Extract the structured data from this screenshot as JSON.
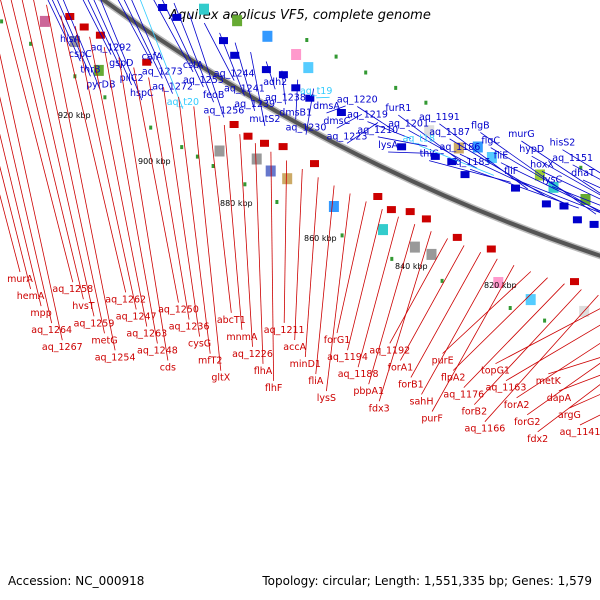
{
  "title": "Aquifex aeolicus VF5, complete genome",
  "footer": {
    "accession": "Accession: NC_000918",
    "summary": "Topology: circular; Length: 1,551,335 bp; Genes: 1,579"
  },
  "colors": {
    "forward": "#0000cc",
    "reverse": "#cc0000",
    "rna": "#33ccff",
    "backbone": "#555555",
    "tick_label": "#000000"
  },
  "ticks": [
    {
      "label": "920 kbp"
    },
    {
      "label": "900 kbp"
    },
    {
      "label": "880 kbp"
    },
    {
      "label": "860 kbp"
    },
    {
      "label": "840 kbp"
    },
    {
      "label": "820 kbp"
    }
  ],
  "forward_genes": [
    "hisA",
    "cspC",
    "thrB",
    "pyrDB",
    "aq_1292",
    "gspD",
    "pilC2",
    "hspC",
    "cafA",
    "aq_1273",
    "aq_1272",
    "aq_t20",
    "cstA",
    "aq_1253",
    "feoB",
    "aq_1256",
    "aq_1244",
    "aq_1241",
    "aq_1239",
    "mutS2",
    "adh2",
    "aq_1238",
    "dmsB1",
    "aq_1230",
    "aq_t19",
    "dmsA",
    "dmsC",
    "aq_1223",
    "aq_1220",
    "aq_1219",
    "aq_1210",
    "lysA",
    "furR1",
    "aq_1201",
    "aq_t18",
    "thiC",
    "aq_1191",
    "aq_1187",
    "aq_1186",
    "aq_1185",
    "flgB",
    "flgC",
    "fliE",
    "fliF",
    "murG",
    "hypD",
    "hoxX",
    "lysC",
    "hisS2",
    "aq_1151",
    "dhaT"
  ],
  "reverse_genes": [
    "murA",
    "hemA",
    "mpp",
    "aq_1264",
    "aq_1267",
    "aq_1258",
    "hvsT",
    "aq_1259",
    "metG",
    "aq_1254",
    "aq_1262",
    "aq_1247",
    "aq_1263",
    "aq_1248",
    "cds",
    "aq_1250",
    "aq_1236",
    "cysG",
    "mfT2",
    "gltX",
    "abcT1",
    "mnmA",
    "aq_1226",
    "flhA",
    "flhF",
    "aq_1211",
    "accA",
    "minD1",
    "fliA",
    "lysS",
    "forG1",
    "aq_1194",
    "aq_1188",
    "pbpA1",
    "fdx3",
    "aq_1192",
    "forA1",
    "forB1",
    "sahH",
    "purF",
    "purE",
    "flpA2",
    "aq_1176",
    "forB2",
    "aq_1166",
    "topG1",
    "aq_1163",
    "forA2",
    "forG2",
    "fdx2",
    "metK",
    "dapA",
    "argG",
    "aq_1141"
  ]
}
